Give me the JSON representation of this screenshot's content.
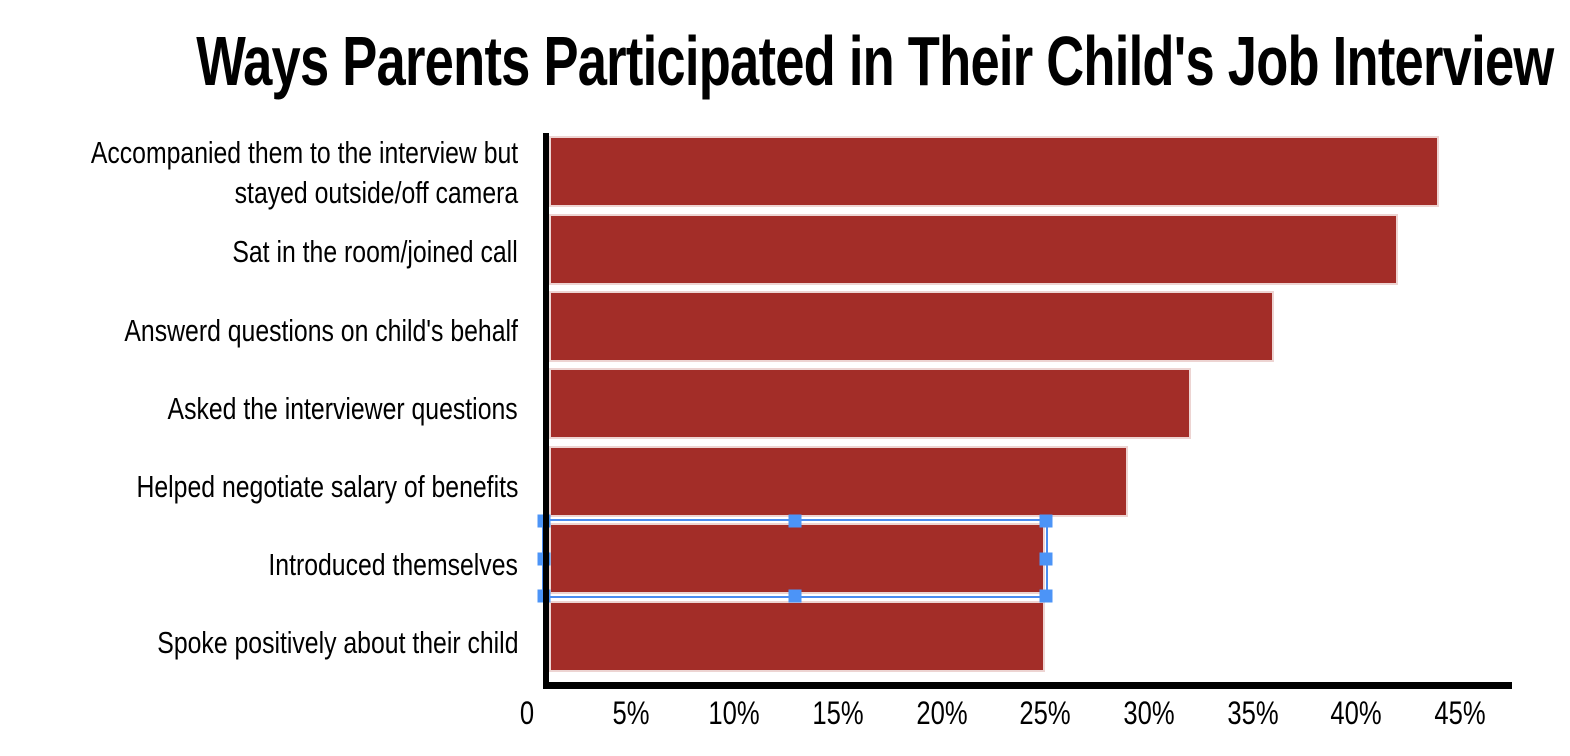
{
  "chart_data": {
    "type": "bar",
    "orientation": "horizontal",
    "title": "Ways Parents Participated in Their Child's Job Interview",
    "categories": [
      "Accompanied them to the interview but\nstayed outside/off camera",
      "Sat in the room/joined call",
      "Answerd questions on child's behalf",
      "Asked the interviewer questions",
      "Helped negotiate salary of benefits",
      "Introduced themselves",
      "Spoke positively about their child"
    ],
    "values": [
      44,
      42,
      36,
      32,
      29,
      25,
      25
    ],
    "unit": "%",
    "xlabel": "",
    "ylabel": "",
    "xlim": [
      0,
      47.5
    ],
    "x_ticks": [
      {
        "value": 0,
        "label": "0"
      },
      {
        "value": 5,
        "label": "5%"
      },
      {
        "value": 10,
        "label": "10%"
      },
      {
        "value": 15,
        "label": "15%"
      },
      {
        "value": 20,
        "label": "20%"
      },
      {
        "value": 25,
        "label": "25%"
      },
      {
        "value": 30,
        "label": "30%"
      },
      {
        "value": 35,
        "label": "35%"
      },
      {
        "value": 40,
        "label": "40%"
      },
      {
        "value": 45,
        "label": "45%"
      }
    ],
    "grid": false,
    "legend": false,
    "bar_color": "#A32D28",
    "bar_border_color": "#EDD4D2",
    "axis_color": "#000000",
    "data_labels": false
  },
  "editor": {
    "selected_bar_index": 5,
    "selected_category": "Introduced themselves",
    "selection_outline_color": "#4A8CF0",
    "handle_color": "#4C94F7",
    "handle_positions": [
      "nw",
      "n",
      "ne",
      "w",
      "e",
      "sw",
      "s",
      "se"
    ]
  }
}
